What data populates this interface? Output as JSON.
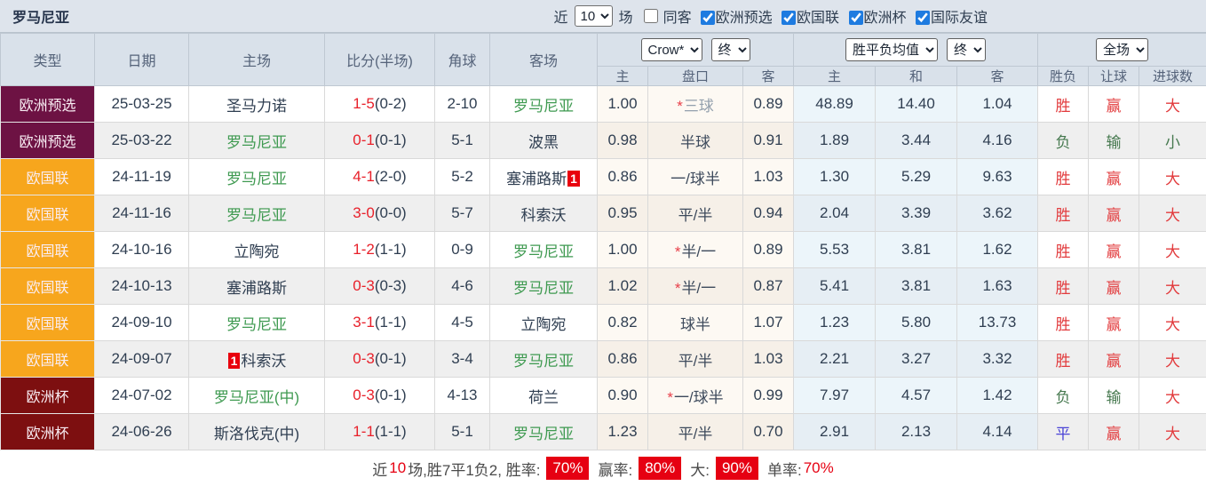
{
  "topbar": {
    "title": "罗马尼亚",
    "filters": {
      "recent_label": "近",
      "recent_value": "10",
      "games_label": "场",
      "same_away_label": "同客",
      "same_away_checked": false,
      "leagues": [
        {
          "label": "欧洲预选",
          "checked": true
        },
        {
          "label": "欧国联",
          "checked": true
        },
        {
          "label": "欧洲杯",
          "checked": true
        },
        {
          "label": "国际友谊",
          "checked": true
        }
      ]
    }
  },
  "table": {
    "headers": {
      "type": "类型",
      "date": "日期",
      "home": "主场",
      "score": "比分(半场)",
      "corner": "角球",
      "away": "客场",
      "asian_home": "主",
      "handicap": "盘口",
      "asian_away": "客",
      "avg_home": "主",
      "avg_draw": "和",
      "avg_away": "客",
      "result": "胜负",
      "handicap_result": "让球",
      "goals": "进球数",
      "selects": {
        "company": "Crow*",
        "company_state": "终",
        "avg_source": "胜平负均值",
        "avg_state": "终",
        "period": "全场"
      }
    },
    "type_colors": {
      "欧洲预选": "#6d1243",
      "欧国联": "#f7a61d",
      "欧洲杯": "#7d0f10"
    },
    "rows": [
      {
        "type": "欧洲预选",
        "date": "25-03-25",
        "home": {
          "name": "圣马力诺",
          "green": false,
          "badge": "",
          "badge_pos": ""
        },
        "score": {
          "main": "1-5",
          "half": "(0-2)"
        },
        "corner": "2-10",
        "away": {
          "name": "罗马尼亚",
          "green": true,
          "badge": "",
          "badge_pos": ""
        },
        "asian": {
          "home": "1.00",
          "star": true,
          "handicap": "三球",
          "muted": true,
          "away": "0.89"
        },
        "avg": {
          "home": "48.89",
          "draw": "14.40",
          "away": "1.04"
        },
        "verdict": {
          "result": "胜",
          "result_color": "red",
          "handicap": "赢",
          "handicap_color": "red",
          "goals": "大",
          "goals_color": "red"
        }
      },
      {
        "type": "欧洲预选",
        "date": "25-03-22",
        "home": {
          "name": "罗马尼亚",
          "green": true,
          "badge": "",
          "badge_pos": ""
        },
        "score": {
          "main": "0-1",
          "half": "(0-1)"
        },
        "corner": "5-1",
        "away": {
          "name": "波黑",
          "green": false,
          "badge": "",
          "badge_pos": ""
        },
        "asian": {
          "home": "0.98",
          "star": false,
          "handicap": "半球",
          "muted": false,
          "away": "0.91"
        },
        "avg": {
          "home": "1.89",
          "draw": "3.44",
          "away": "4.16"
        },
        "verdict": {
          "result": "负",
          "result_color": "green",
          "handicap": "输",
          "handicap_color": "green",
          "goals": "小",
          "goals_color": "green"
        }
      },
      {
        "type": "欧国联",
        "date": "24-11-19",
        "home": {
          "name": "罗马尼亚",
          "green": true,
          "badge": "",
          "badge_pos": ""
        },
        "score": {
          "main": "4-1",
          "half": "(2-0)"
        },
        "corner": "5-2",
        "away": {
          "name": "塞浦路斯",
          "green": false,
          "badge": "1",
          "badge_pos": "after"
        },
        "asian": {
          "home": "0.86",
          "star": false,
          "handicap": "一/球半",
          "muted": false,
          "away": "1.03"
        },
        "avg": {
          "home": "1.30",
          "draw": "5.29",
          "away": "9.63"
        },
        "verdict": {
          "result": "胜",
          "result_color": "red",
          "handicap": "赢",
          "handicap_color": "red",
          "goals": "大",
          "goals_color": "red"
        }
      },
      {
        "type": "欧国联",
        "date": "24-11-16",
        "home": {
          "name": "罗马尼亚",
          "green": true,
          "badge": "",
          "badge_pos": ""
        },
        "score": {
          "main": "3-0",
          "half": "(0-0)"
        },
        "corner": "5-7",
        "away": {
          "name": "科索沃",
          "green": false,
          "badge": "",
          "badge_pos": ""
        },
        "asian": {
          "home": "0.95",
          "star": false,
          "handicap": "平/半",
          "muted": false,
          "away": "0.94"
        },
        "avg": {
          "home": "2.04",
          "draw": "3.39",
          "away": "3.62"
        },
        "verdict": {
          "result": "胜",
          "result_color": "red",
          "handicap": "赢",
          "handicap_color": "red",
          "goals": "大",
          "goals_color": "red"
        }
      },
      {
        "type": "欧国联",
        "date": "24-10-16",
        "home": {
          "name": "立陶宛",
          "green": false,
          "badge": "",
          "badge_pos": ""
        },
        "score": {
          "main": "1-2",
          "half": "(1-1)"
        },
        "corner": "0-9",
        "away": {
          "name": "罗马尼亚",
          "green": true,
          "badge": "",
          "badge_pos": ""
        },
        "asian": {
          "home": "1.00",
          "star": true,
          "handicap": "半/一",
          "muted": false,
          "away": "0.89"
        },
        "avg": {
          "home": "5.53",
          "draw": "3.81",
          "away": "1.62"
        },
        "verdict": {
          "result": "胜",
          "result_color": "red",
          "handicap": "赢",
          "handicap_color": "red",
          "goals": "大",
          "goals_color": "red"
        }
      },
      {
        "type": "欧国联",
        "date": "24-10-13",
        "home": {
          "name": "塞浦路斯",
          "green": false,
          "badge": "",
          "badge_pos": ""
        },
        "score": {
          "main": "0-3",
          "half": "(0-3)"
        },
        "corner": "4-6",
        "away": {
          "name": "罗马尼亚",
          "green": true,
          "badge": "",
          "badge_pos": ""
        },
        "asian": {
          "home": "1.02",
          "star": true,
          "handicap": "半/一",
          "muted": false,
          "away": "0.87"
        },
        "avg": {
          "home": "5.41",
          "draw": "3.81",
          "away": "1.63"
        },
        "verdict": {
          "result": "胜",
          "result_color": "red",
          "handicap": "赢",
          "handicap_color": "red",
          "goals": "大",
          "goals_color": "red"
        }
      },
      {
        "type": "欧国联",
        "date": "24-09-10",
        "home": {
          "name": "罗马尼亚",
          "green": true,
          "badge": "",
          "badge_pos": ""
        },
        "score": {
          "main": "3-1",
          "half": "(1-1)"
        },
        "corner": "4-5",
        "away": {
          "name": "立陶宛",
          "green": false,
          "badge": "",
          "badge_pos": ""
        },
        "asian": {
          "home": "0.82",
          "star": false,
          "handicap": "球半",
          "muted": false,
          "away": "1.07"
        },
        "avg": {
          "home": "1.23",
          "draw": "5.80",
          "away": "13.73"
        },
        "verdict": {
          "result": "胜",
          "result_color": "red",
          "handicap": "赢",
          "handicap_color": "red",
          "goals": "大",
          "goals_color": "red"
        }
      },
      {
        "type": "欧国联",
        "date": "24-09-07",
        "home": {
          "name": "科索沃",
          "green": false,
          "badge": "1",
          "badge_pos": "before"
        },
        "score": {
          "main": "0-3",
          "half": "(0-1)"
        },
        "corner": "3-4",
        "away": {
          "name": "罗马尼亚",
          "green": true,
          "badge": "",
          "badge_pos": ""
        },
        "asian": {
          "home": "0.86",
          "star": false,
          "handicap": "平/半",
          "muted": false,
          "away": "1.03"
        },
        "avg": {
          "home": "2.21",
          "draw": "3.27",
          "away": "3.32"
        },
        "verdict": {
          "result": "胜",
          "result_color": "red",
          "handicap": "赢",
          "handicap_color": "red",
          "goals": "大",
          "goals_color": "red"
        }
      },
      {
        "type": "欧洲杯",
        "date": "24-07-02",
        "home": {
          "name": "罗马尼亚(中)",
          "green": true,
          "badge": "",
          "badge_pos": ""
        },
        "score": {
          "main": "0-3",
          "half": "(0-1)"
        },
        "corner": "4-13",
        "away": {
          "name": "荷兰",
          "green": false,
          "badge": "",
          "badge_pos": ""
        },
        "asian": {
          "home": "0.90",
          "star": true,
          "handicap": "一/球半",
          "muted": false,
          "away": "0.99"
        },
        "avg": {
          "home": "7.97",
          "draw": "4.57",
          "away": "1.42"
        },
        "verdict": {
          "result": "负",
          "result_color": "green",
          "handicap": "输",
          "handicap_color": "green",
          "goals": "大",
          "goals_color": "red"
        }
      },
      {
        "type": "欧洲杯",
        "date": "24-06-26",
        "home": {
          "name": "斯洛伐克(中)",
          "green": false,
          "badge": "",
          "badge_pos": ""
        },
        "score": {
          "main": "1-1",
          "half": "(1-1)"
        },
        "corner": "5-1",
        "away": {
          "name": "罗马尼亚",
          "green": true,
          "badge": "",
          "badge_pos": ""
        },
        "asian": {
          "home": "1.23",
          "star": false,
          "handicap": "平/半",
          "muted": false,
          "away": "0.70"
        },
        "avg": {
          "home": "2.91",
          "draw": "2.13",
          "away": "4.14"
        },
        "verdict": {
          "result": "平",
          "result_color": "blue",
          "handicap": "赢",
          "handicap_color": "red",
          "goals": "大",
          "goals_color": "red"
        }
      }
    ]
  },
  "summary": {
    "recent_prefix": "近",
    "recent_count": "10",
    "recent_suffix": "场,胜7平1负2, 胜率:",
    "win_rate_badge": "70%",
    "profit_label": "赢率:",
    "profit_badge": "80%",
    "big_label": "大:",
    "big_badge": "90%",
    "single_label": "单率:",
    "single_value": "70%"
  }
}
